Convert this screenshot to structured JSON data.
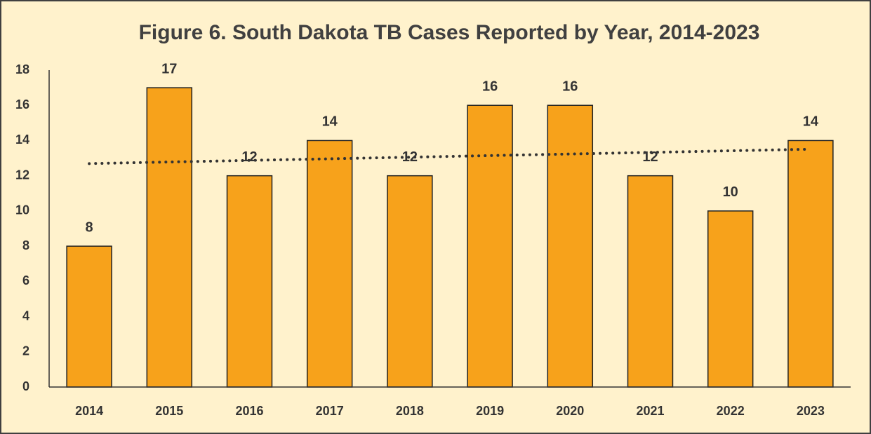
{
  "chart_data": {
    "type": "bar",
    "title": "Figure 6.  South Dakota TB Cases Reported by Year, 2014-2023",
    "categories": [
      "2014",
      "2015",
      "2016",
      "2017",
      "2018",
      "2019",
      "2020",
      "2021",
      "2022",
      "2023"
    ],
    "values": [
      8,
      17,
      12,
      14,
      12,
      16,
      16,
      12,
      10,
      14
    ],
    "color": "#f7a21b",
    "ylim": [
      0,
      18
    ],
    "yticks": [
      0,
      2,
      4,
      6,
      8,
      10,
      12,
      14,
      16,
      18
    ],
    "grid": false,
    "data_labels": true,
    "trendline": "linear"
  }
}
